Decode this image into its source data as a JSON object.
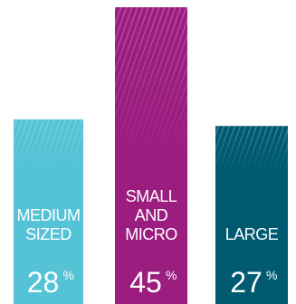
{
  "chart_data": {
    "type": "bar",
    "categories": [
      "MEDIUM SIZED",
      "SMALL AND MICRO",
      "LARGE"
    ],
    "category_lines": [
      [
        "MEDIUM",
        "SIZED"
      ],
      [
        "SMALL",
        "AND",
        "MICRO"
      ],
      [
        "LARGE"
      ]
    ],
    "values": [
      28,
      45,
      27
    ],
    "value_unit": "%",
    "ylim": [
      0,
      45
    ],
    "colors": [
      "#54c3d6",
      "#9b1d80",
      "#005a71"
    ],
    "grid": false,
    "legend": "none",
    "texture": "diagonal-hatch-top"
  }
}
